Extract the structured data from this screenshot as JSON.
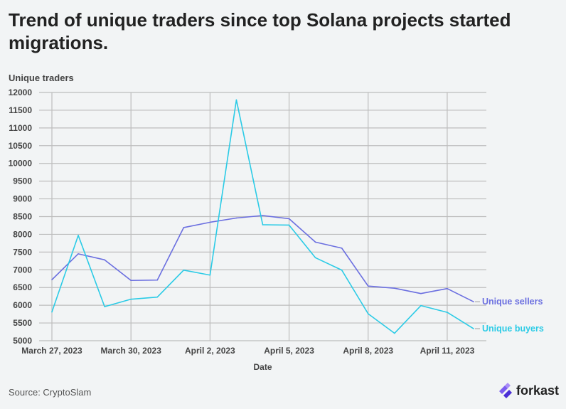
{
  "title": "Trend of unique traders since top Solana projects started migrations.",
  "source": "Source: CryptoSlam",
  "brand": {
    "name": "forkast",
    "logo_icon": "forkast-logo-icon"
  },
  "colors": {
    "sellers": "#6b6fe0",
    "buyers": "#2bcbe6",
    "grid": "#bdbdbd",
    "background": "#f2f4f5"
  },
  "chart_data": {
    "type": "line",
    "xlabel": "Date",
    "ylabel": "Unique traders",
    "ylim": [
      5000,
      12000
    ],
    "y_ticks": [
      5000,
      5500,
      6000,
      6500,
      7000,
      7500,
      8000,
      8500,
      9000,
      9500,
      10000,
      10500,
      11000,
      11500,
      12000
    ],
    "x_tick_labels": [
      "March 27, 2023",
      "March 30, 2023",
      "April 2, 2023",
      "April 5, 2023",
      "April 8, 2023",
      "April 11, 2023"
    ],
    "x_tick_indices": [
      0,
      3,
      6,
      9,
      12,
      15
    ],
    "x": [
      "2023-03-27",
      "2023-03-28",
      "2023-03-29",
      "2023-03-30",
      "2023-03-31",
      "2023-04-01",
      "2023-04-02",
      "2023-04-03",
      "2023-04-04",
      "2023-04-05",
      "2023-04-06",
      "2023-04-07",
      "2023-04-08",
      "2023-04-09",
      "2023-04-10",
      "2023-04-11",
      "2023-04-12"
    ],
    "grid": true,
    "series": [
      {
        "name": "Unique sellers",
        "color": "#6b6fe0",
        "values": [
          6720,
          7450,
          7280,
          6700,
          6710,
          8190,
          8340,
          8460,
          8530,
          8440,
          7780,
          7610,
          6540,
          6480,
          6330,
          6470,
          6100
        ]
      },
      {
        "name": "Unique buyers",
        "color": "#2bcbe6",
        "values": [
          5810,
          7970,
          5960,
          6170,
          6230,
          6990,
          6850,
          11790,
          8270,
          8260,
          7340,
          6990,
          5760,
          5210,
          5990,
          5800,
          5340
        ]
      }
    ]
  }
}
